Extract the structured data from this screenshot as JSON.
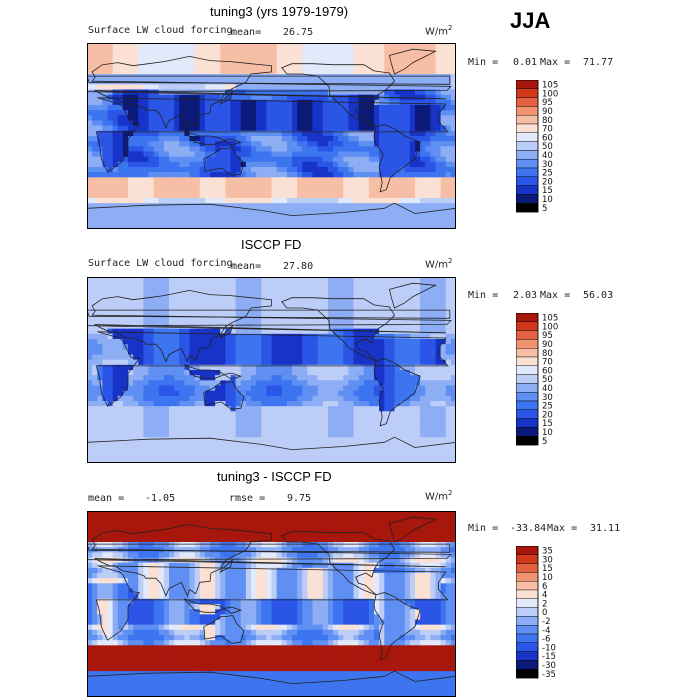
{
  "season": "JJA",
  "colors": {
    "diverging_13": [
      "#0b1a78",
      "#1733c8",
      "#2a55e6",
      "#3d74ef",
      "#5f8ff2",
      "#8dadf5",
      "#bccdf7",
      "#e2e9fa",
      "#fbe0d4",
      "#f7bea6",
      "#f19371",
      "#e4623f",
      "#cf3819",
      "#a8170b"
    ],
    "continents": "#222222"
  },
  "chart_data": [
    {
      "type": "heatmap",
      "title": "tuning3 (yrs 1979-1979)",
      "subtitle": "Surface LW cloud forcing",
      "mean_label": "mean=",
      "mean": "26.75",
      "units": "W/m",
      "units_exp": "2",
      "min_label": "Min =",
      "min": "0.01",
      "max_label": "Max =",
      "max": "71.77",
      "colorbar_levels": [
        "5",
        "10",
        "15",
        "20",
        "25",
        "30",
        "40",
        "50",
        "60",
        "70",
        "80",
        "90",
        "95",
        "100",
        "105"
      ],
      "field": "abs",
      "x_range": [
        0,
        360
      ],
      "y_range": [
        -90,
        90
      ]
    },
    {
      "type": "heatmap",
      "title": "ISCCP FD",
      "subtitle": "Surface LW cloud forcing",
      "mean_label": "mean=",
      "mean": "27.80",
      "units": "W/m",
      "units_exp": "2",
      "min_label": "Min =",
      "min": "2.03",
      "max_label": "Max =",
      "max": "56.03",
      "colorbar_levels": [
        "5",
        "10",
        "15",
        "20",
        "25",
        "30",
        "40",
        "50",
        "60",
        "70",
        "80",
        "90",
        "95",
        "100",
        "105"
      ],
      "field": "obs",
      "x_range": [
        0,
        360
      ],
      "y_range": [
        -90,
        90
      ]
    },
    {
      "type": "heatmap",
      "title": "tuning3 - ISCCP FD",
      "mean_label": "mean =",
      "mean": "-1.05",
      "rmse_label": "rmse =",
      "rmse": "9.75",
      "units": "W/m",
      "units_exp": "2",
      "min_label": "Min =",
      "min": "-33.84",
      "max_label": "Max =",
      "max": "31.11",
      "colorbar_levels": [
        "-35",
        "-30",
        "-15",
        "-10",
        "-6",
        "-4",
        "-2",
        "0",
        "2",
        "4",
        "6",
        "10",
        "15",
        "30",
        "35"
      ],
      "field": "diff",
      "x_range": [
        0,
        360
      ],
      "y_range": [
        -90,
        90
      ]
    }
  ]
}
